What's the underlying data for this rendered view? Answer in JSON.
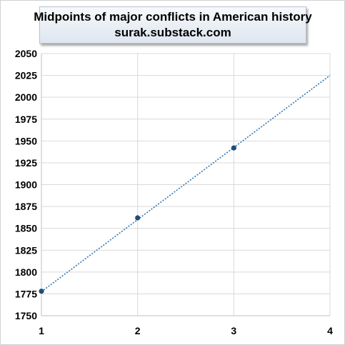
{
  "chart_data": {
    "type": "scatter",
    "title": "Midpoints of major conflicts in American history",
    "subtitle": "surak.substack.com",
    "xlabel": "",
    "ylabel": "",
    "xlim": [
      1,
      4
    ],
    "ylim": [
      1750,
      2050
    ],
    "x_ticks": [
      "1",
      "2",
      "3",
      "4"
    ],
    "y_ticks": [
      "2050",
      "2025",
      "2000",
      "1975",
      "1950",
      "1925",
      "1900",
      "1875",
      "1850",
      "1825",
      "1800",
      "1775",
      "1750"
    ],
    "grid": true,
    "legend": "none",
    "series": [
      {
        "x": [
          1,
          2,
          3
        ],
        "y": [
          1778,
          1862,
          1942
        ],
        "marker_color": "#1f4e79"
      }
    ],
    "trendline": {
      "style": "dotted",
      "color": "#2e75b6",
      "x": [
        1,
        4
      ],
      "y": [
        1777.5,
        2025
      ]
    }
  }
}
